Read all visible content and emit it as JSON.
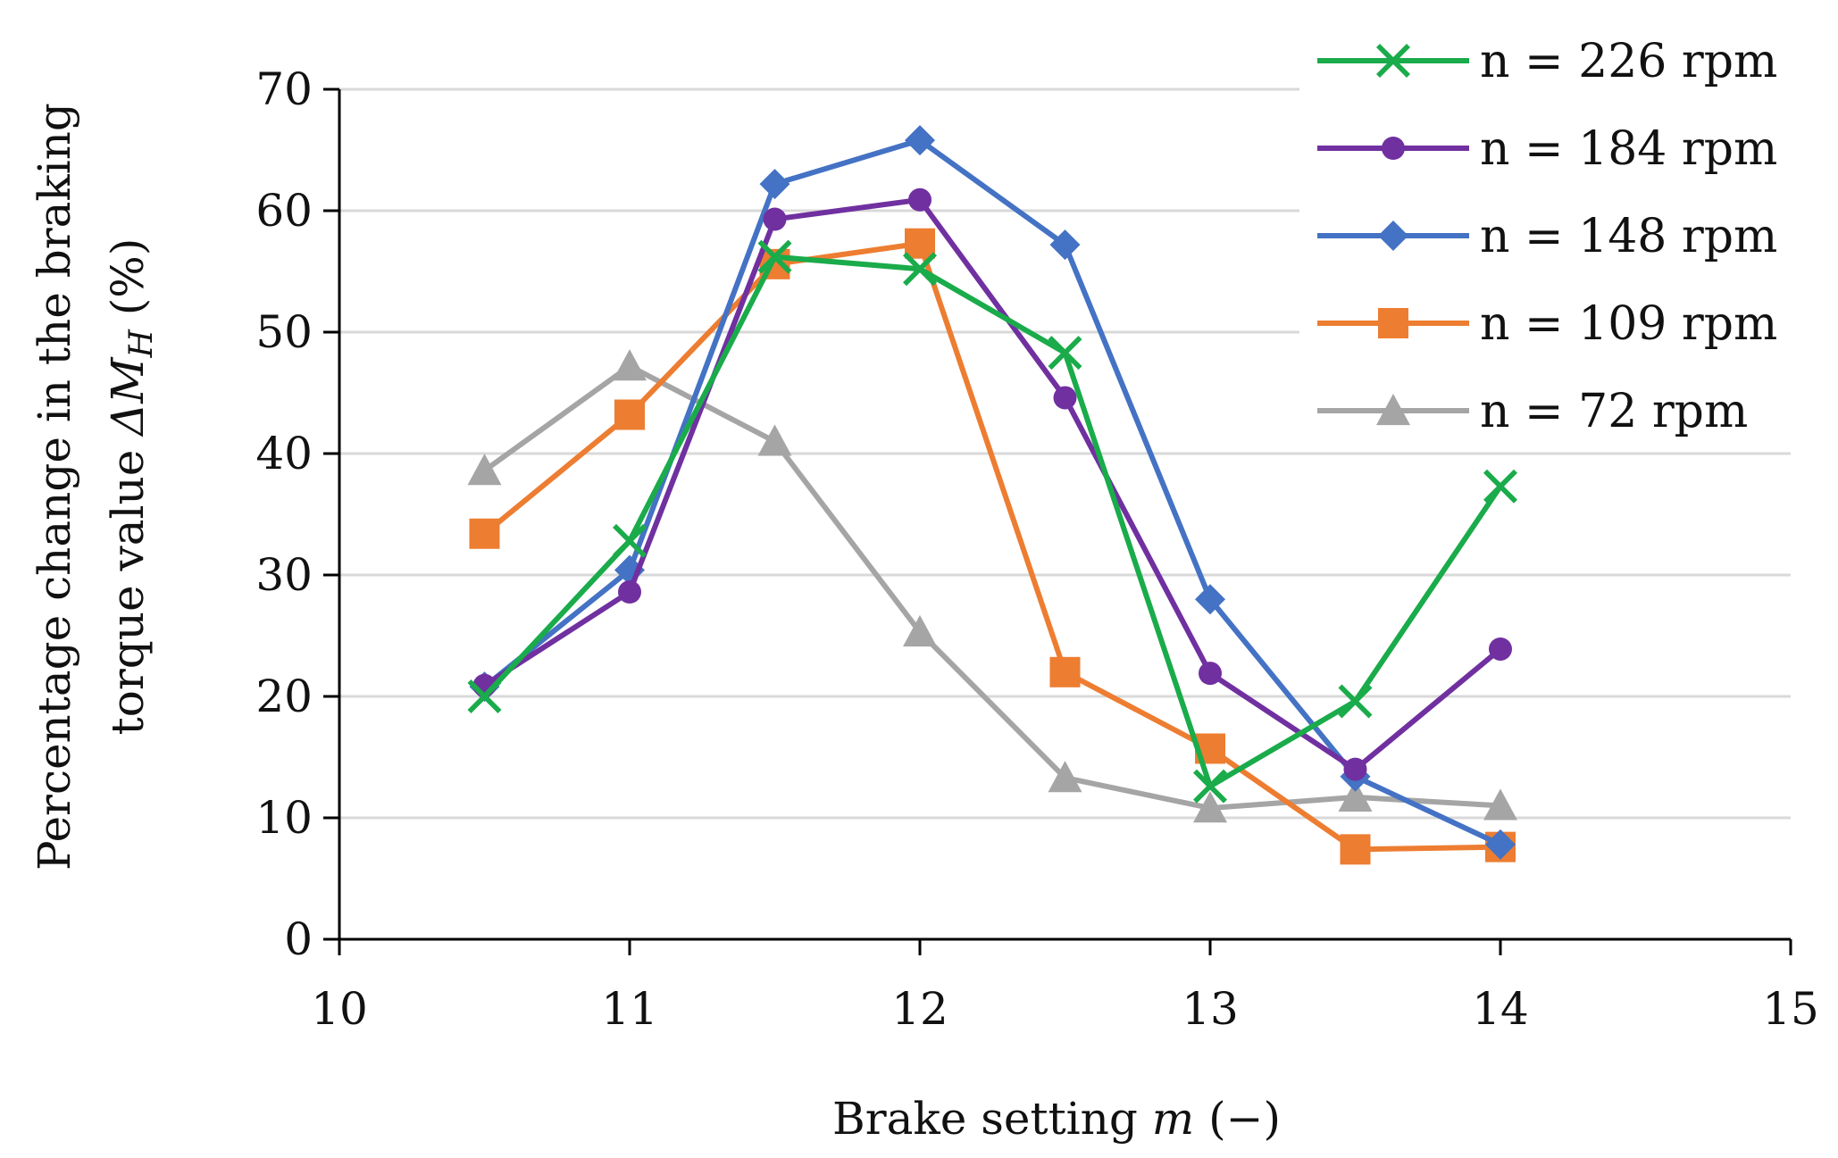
{
  "chart_data": {
    "type": "line",
    "xlabel_prefix": "Brake setting ",
    "xlabel_var": "m",
    "xlabel_suffix": " (−)",
    "ylabel_line1": "Percentage change in the braking",
    "ylabel_line2_prefix": "torque value ",
    "ylabel_var": "ΔM",
    "ylabel_sub": "H",
    "ylabel_suffix": " (%)",
    "xlim": [
      10,
      15
    ],
    "ylim": [
      0,
      70
    ],
    "x_ticks": [
      "10",
      "11",
      "12",
      "13",
      "14",
      "15"
    ],
    "y_ticks": [
      "0",
      "10",
      "20",
      "30",
      "40",
      "50",
      "60",
      "70"
    ],
    "grid": true,
    "legend_position": "top-right",
    "series": [
      {
        "name": "n = 226 rpm",
        "color": "#1aab4b",
        "marker": "x",
        "x": [
          10.5,
          11,
          11.5,
          12,
          12.5,
          13,
          13.5,
          14
        ],
        "y": [
          20.0,
          32.8,
          56.2,
          55.2,
          48.3,
          12.6,
          19.6,
          37.3
        ]
      },
      {
        "name": "n = 184 rpm",
        "color": "#7030a0",
        "marker": "circle",
        "x": [
          10.5,
          11,
          11.5,
          12,
          12.5,
          13,
          13.5,
          14
        ],
        "y": [
          20.9,
          28.6,
          59.3,
          60.9,
          44.6,
          21.9,
          14.0,
          23.9
        ]
      },
      {
        "name": "n = 148 rpm",
        "color": "#4472c4",
        "marker": "diamond",
        "x": [
          10.5,
          11,
          11.5,
          12,
          12.5,
          13,
          13.5,
          14
        ],
        "y": [
          20.8,
          30.4,
          62.2,
          65.8,
          57.2,
          28.0,
          13.4,
          7.8
        ]
      },
      {
        "name": "n = 109 rpm",
        "color": "#ed7d31",
        "marker": "square",
        "x": [
          10.5,
          11,
          11.5,
          12,
          12.5,
          13,
          13.5,
          14
        ],
        "y": [
          33.4,
          43.2,
          55.6,
          57.3,
          22.0,
          15.7,
          7.4,
          7.6
        ]
      },
      {
        "name": "n = 72 rpm",
        "color": "#a5a5a5",
        "marker": "triangle",
        "x": [
          10.5,
          11,
          11.5,
          12,
          12.5,
          13,
          13.5,
          14
        ],
        "y": [
          38.6,
          47.2,
          41.0,
          25.3,
          13.3,
          10.8,
          11.7,
          11.0
        ]
      }
    ]
  }
}
